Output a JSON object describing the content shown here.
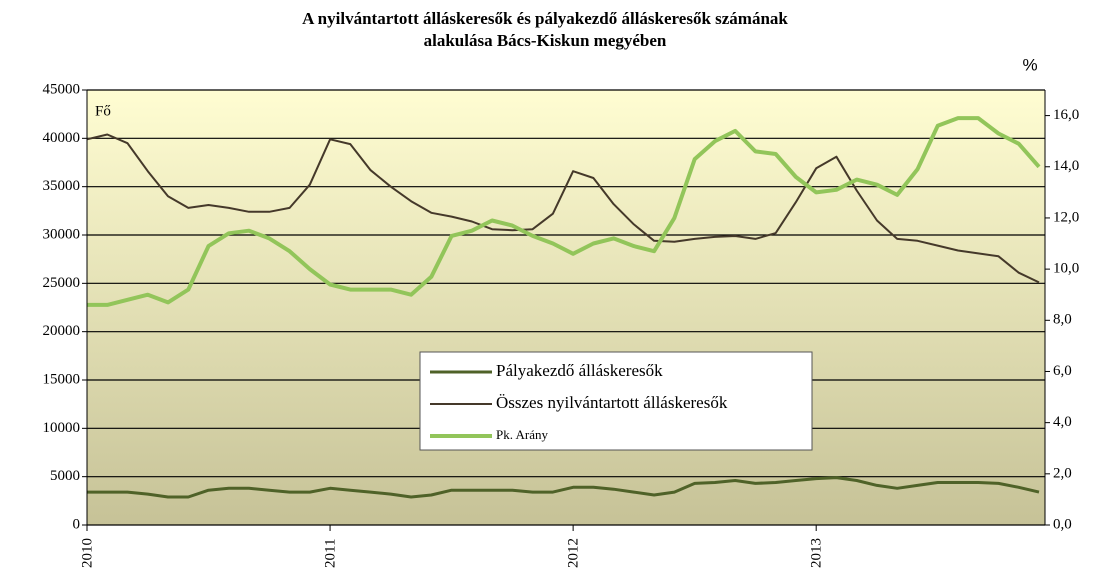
{
  "chart_data": {
    "type": "line",
    "title": [
      "A nyilvántartott álláskeresők és pályakezdő álláskeresők számának",
      "alakulása Bács-Kiskun megyében"
    ],
    "y_unit": "Fő",
    "y2_unit": "%",
    "categories": [
      "2010",
      null,
      null,
      null,
      null,
      null,
      null,
      null,
      null,
      null,
      null,
      null,
      "2011",
      null,
      null,
      null,
      null,
      null,
      null,
      null,
      null,
      null,
      null,
      null,
      "2012",
      null,
      null,
      null,
      null,
      null,
      null,
      null,
      null,
      null,
      null,
      null,
      "2013",
      null,
      null,
      null,
      null,
      null,
      null,
      null,
      null,
      null,
      null,
      null
    ],
    "ylim": [
      0,
      45000
    ],
    "yticks": [
      0,
      5000,
      10000,
      15000,
      20000,
      25000,
      30000,
      35000,
      40000,
      45000
    ],
    "y2lim": [
      0,
      17
    ],
    "y2ticks": [
      {
        "value": 0,
        "label": "0,0"
      },
      {
        "value": 2,
        "label": "2,0"
      },
      {
        "value": 4,
        "label": "4,0"
      },
      {
        "value": 6,
        "label": "6,0"
      },
      {
        "value": 8,
        "label": "8,0"
      },
      {
        "value": 10,
        "label": "10,0"
      },
      {
        "value": 12,
        "label": "12,0"
      },
      {
        "value": 14,
        "label": "14,0"
      },
      {
        "value": 16,
        "label": "16,0"
      }
    ],
    "grid": true,
    "series": [
      {
        "name": "Pályakezdő  álláskeresők",
        "color": "#4f6228",
        "width": 3,
        "values": [
          3400,
          3400,
          3400,
          3200,
          2900,
          2900,
          3600,
          3800,
          3800,
          3600,
          3400,
          3400,
          3800,
          3600,
          3400,
          3200,
          2900,
          3100,
          3600,
          3600,
          3600,
          3600,
          3400,
          3400,
          3900,
          3900,
          3700,
          3400,
          3100,
          3400,
          4300,
          4400,
          4600,
          4300,
          4400,
          4600,
          4800,
          4900,
          4600,
          4100,
          3800,
          4100,
          4400,
          4400,
          4400,
          4300,
          3900,
          3400
        ]
      },
      {
        "name": "Összes nyilvántartott  álláskeresők",
        "color": "#45392a",
        "width": 2,
        "values": [
          39900,
          40400,
          39500,
          36600,
          34000,
          32800,
          33100,
          32800,
          32400,
          32400,
          32800,
          35200,
          39900,
          39400,
          36700,
          35000,
          33500,
          32300,
          31900,
          31400,
          30600,
          30500,
          30600,
          32200,
          36600,
          35900,
          33200,
          31100,
          29400,
          29300,
          29600,
          29800,
          29900,
          29600,
          30200,
          33400,
          36900,
          38100,
          34600,
          31500,
          29600,
          29400,
          28900,
          28400,
          28100,
          27800,
          26100,
          25100
        ]
      },
      {
        "name": "Pk. Arány",
        "color": "#92c55a",
        "width": 4,
        "axis": "y2",
        "values": [
          8.6,
          8.6,
          8.8,
          9.0,
          8.7,
          9.2,
          10.9,
          11.4,
          11.5,
          11.2,
          10.7,
          10.0,
          9.4,
          9.2,
          9.2,
          9.2,
          9.0,
          9.7,
          11.3,
          11.5,
          11.9,
          11.7,
          11.3,
          11.0,
          10.6,
          11.0,
          11.2,
          10.9,
          10.7,
          12.0,
          14.3,
          15.0,
          15.4,
          14.6,
          14.5,
          13.6,
          13.0,
          13.1,
          13.5,
          13.3,
          12.9,
          13.9,
          15.6,
          15.9,
          15.9,
          15.3,
          14.9,
          14.0
        ]
      }
    ]
  }
}
